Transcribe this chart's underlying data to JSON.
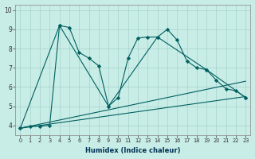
{
  "xlabel": "Humidex (Indice chaleur)",
  "xlim": [
    -0.5,
    23.5
  ],
  "ylim": [
    3.5,
    10.3
  ],
  "xticks": [
    0,
    1,
    2,
    3,
    4,
    5,
    6,
    7,
    8,
    9,
    10,
    11,
    12,
    13,
    14,
    15,
    16,
    17,
    18,
    19,
    20,
    21,
    22,
    23
  ],
  "yticks": [
    4,
    5,
    6,
    7,
    8,
    9,
    10
  ],
  "bg_color": "#c8ece6",
  "line_color": "#006060",
  "series": [
    {
      "x": [
        0,
        1,
        2,
        3,
        4,
        5,
        6,
        7,
        8,
        9,
        10,
        11,
        12,
        13,
        14,
        15,
        16,
        17,
        18,
        19,
        20,
        21,
        22,
        23
      ],
      "y": [
        3.85,
        3.95,
        3.95,
        4.0,
        9.2,
        9.1,
        7.8,
        7.5,
        7.1,
        5.0,
        5.45,
        7.5,
        8.55,
        8.6,
        8.6,
        9.0,
        8.45,
        7.35,
        7.0,
        6.9,
        6.35,
        5.9,
        5.8,
        5.45
      ],
      "marker": true
    },
    {
      "x": [
        0,
        4,
        9,
        14,
        19,
        23
      ],
      "y": [
        3.85,
        9.2,
        5.0,
        8.6,
        6.9,
        5.45
      ],
      "marker": true
    },
    {
      "x": [
        0,
        23
      ],
      "y": [
        3.85,
        6.3
      ],
      "marker": false
    },
    {
      "x": [
        0,
        23
      ],
      "y": [
        3.85,
        5.5
      ],
      "marker": false
    }
  ]
}
